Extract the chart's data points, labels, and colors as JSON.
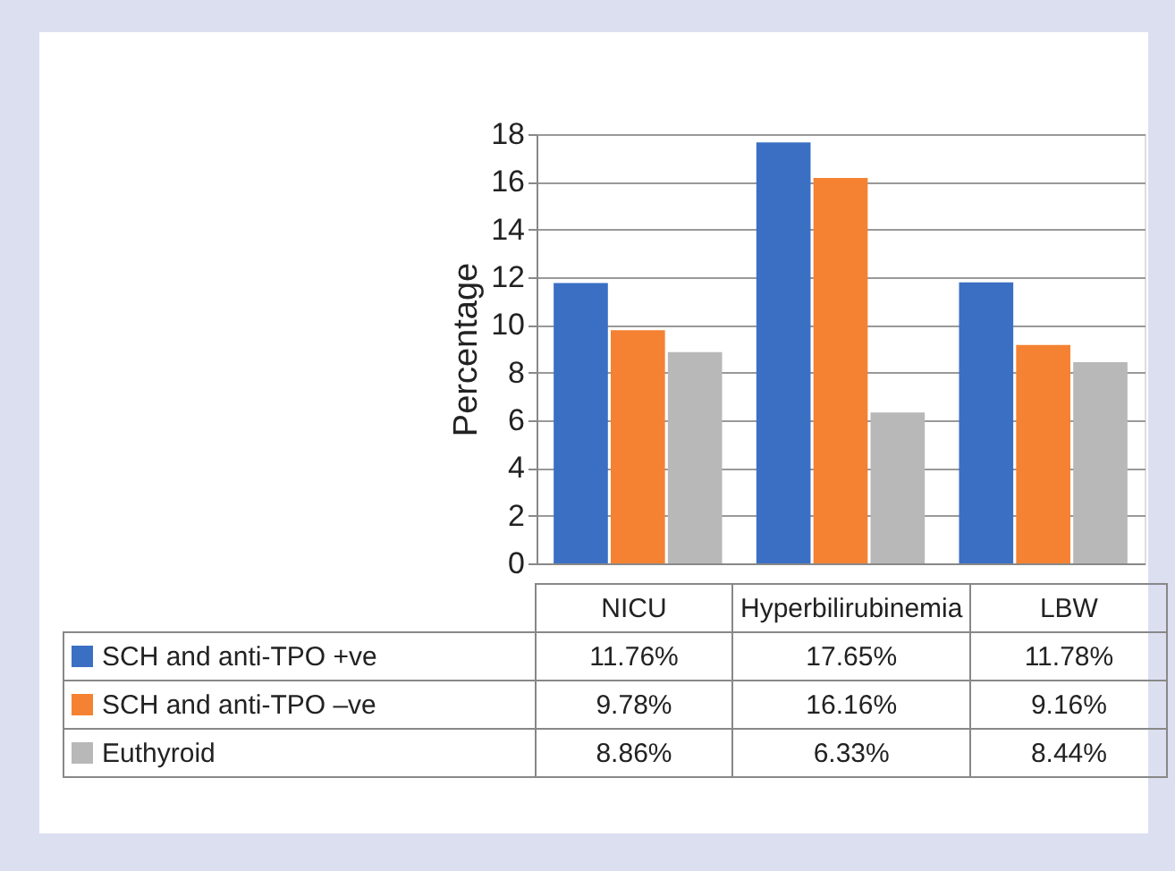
{
  "chart_data": {
    "type": "bar",
    "ylabel": "Percentage",
    "categories": [
      "NICU",
      "Hyperbilirubinemia",
      "LBW"
    ],
    "series": [
      {
        "name": "SCH and anti-TPO +ve",
        "color": "#3a6fc4",
        "values": [
          11.76,
          17.65,
          11.78
        ],
        "value_labels": [
          "11.76%",
          "17.65%",
          "11.78%"
        ]
      },
      {
        "name": "SCH and anti-TPO –ve",
        "color": "#f58232",
        "values": [
          9.78,
          16.16,
          9.16
        ],
        "value_labels": [
          "9.78%",
          "16.16%",
          "9.16%"
        ]
      },
      {
        "name": "Euthyroid",
        "color": "#b8b8b8",
        "values": [
          8.86,
          6.33,
          8.44
        ],
        "value_labels": [
          "8.86%",
          "6.33%",
          "8.44%"
        ]
      }
    ],
    "ylim": [
      0,
      18
    ],
    "yticks": [
      0,
      2,
      4,
      6,
      8,
      10,
      12,
      14,
      16,
      18
    ],
    "grid": "y",
    "legend": "bottom"
  }
}
